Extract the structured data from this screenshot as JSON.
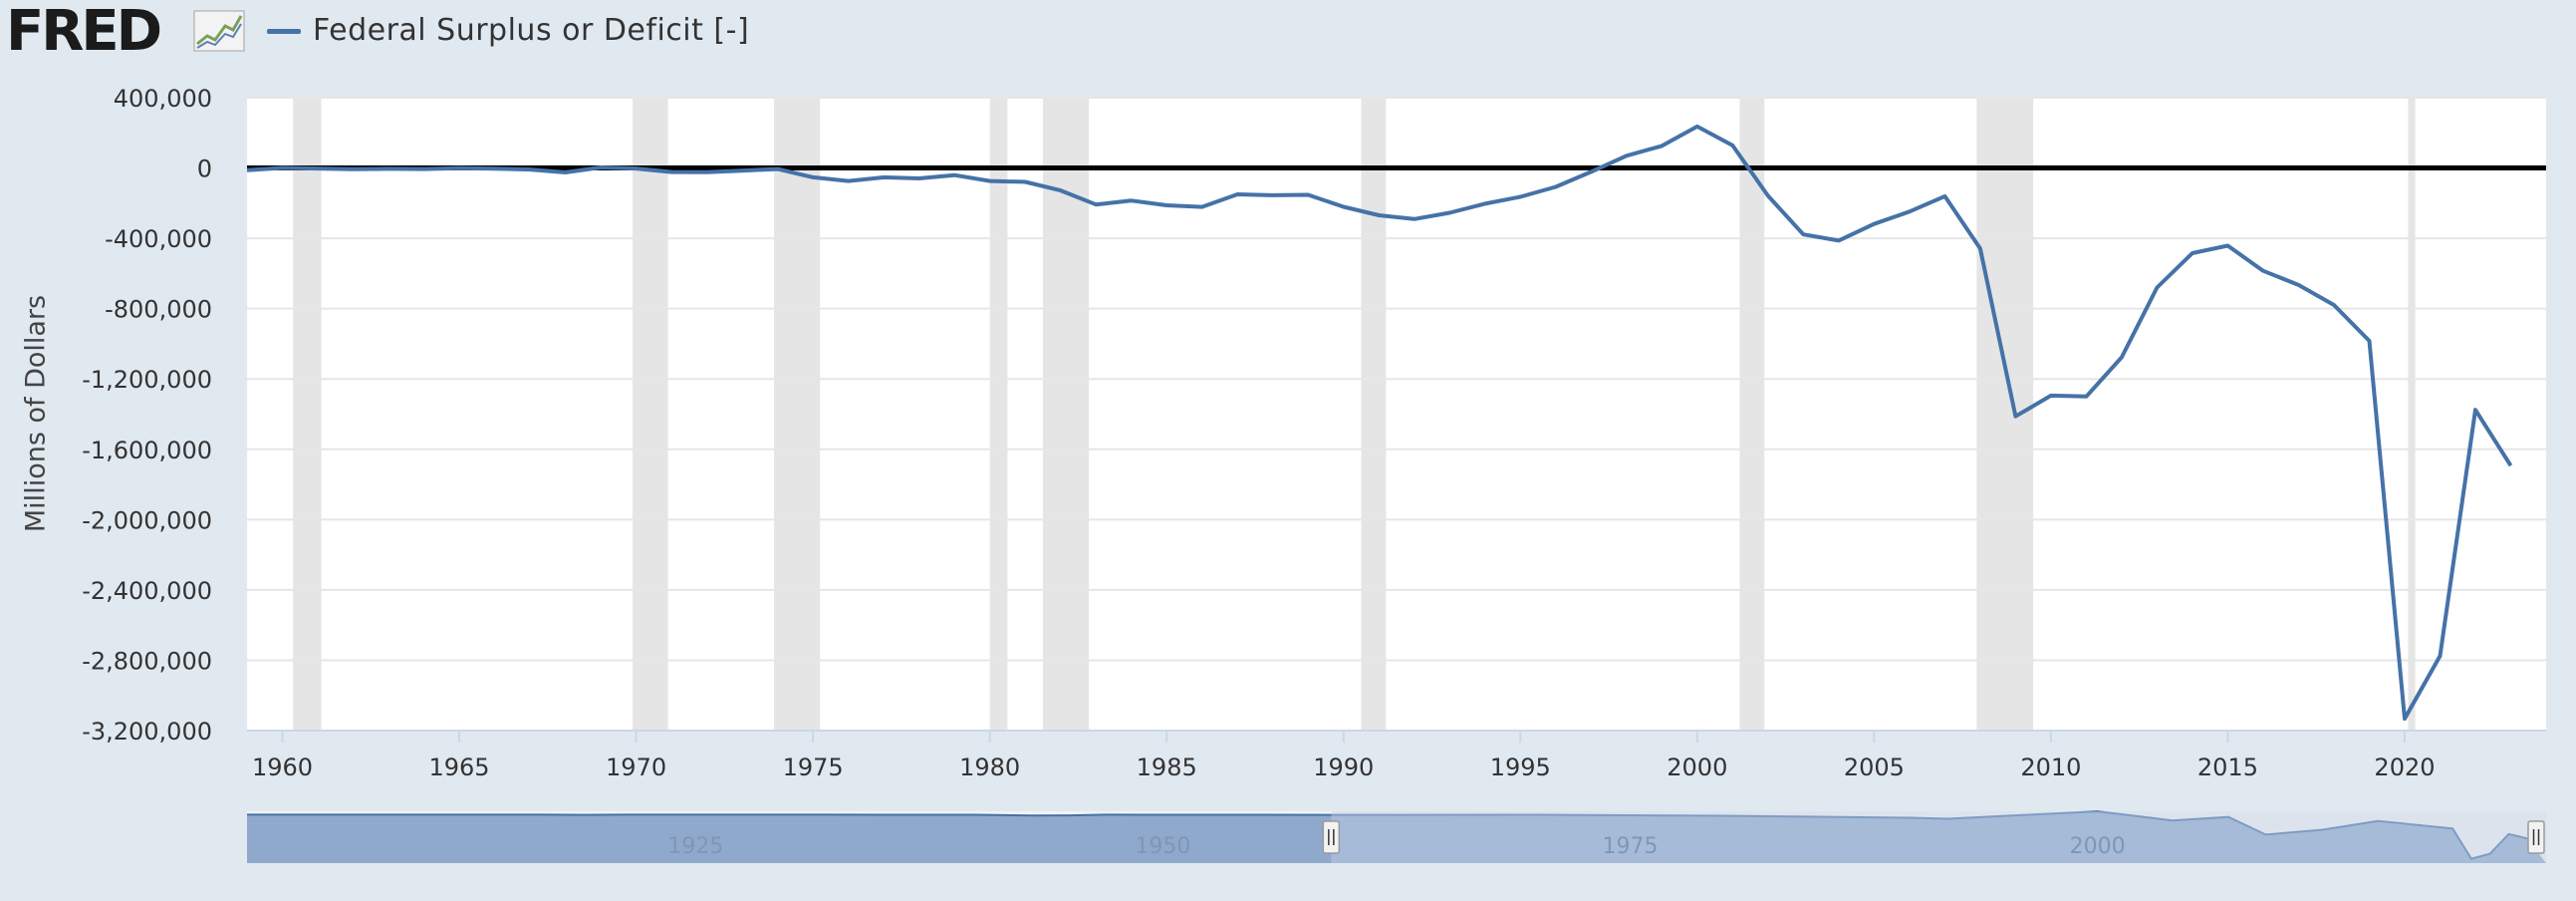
{
  "header": {
    "logo_text": "FRED",
    "logo_icon": "chart-line-icon"
  },
  "colors": {
    "background": "#e1e9f0",
    "plot_background": "#ffffff",
    "series": "#4572a7",
    "recession_band": "#e5e5e5",
    "grid": "#e6e6e6",
    "zero_line": "#000000",
    "navigator_fill": "#8fa9cc",
    "navigator_selected": "#c4d0e7"
  },
  "chart_data": {
    "type": "line",
    "title": "",
    "xlabel": "",
    "ylabel": "Millions of Dollars",
    "legend": {
      "position": "top-left"
    },
    "grid": true,
    "xlim": [
      1959,
      2024
    ],
    "ylim": [
      -3200000,
      400000
    ],
    "yticks": [
      {
        "value": 400000,
        "label": "400,000"
      },
      {
        "value": 0,
        "label": "0"
      },
      {
        "value": -400000,
        "label": "-400,000"
      },
      {
        "value": -800000,
        "label": "-800,000"
      },
      {
        "value": -1200000,
        "label": "-1,200,000"
      },
      {
        "value": -1600000,
        "label": "-1,600,000"
      },
      {
        "value": -2000000,
        "label": "-2,000,000"
      },
      {
        "value": -2400000,
        "label": "-2,400,000"
      },
      {
        "value": -2800000,
        "label": "-2,800,000"
      },
      {
        "value": -3200000,
        "label": "-3,200,000"
      }
    ],
    "xticks": [
      {
        "value": 1960,
        "label": "1960"
      },
      {
        "value": 1965,
        "label": "1965"
      },
      {
        "value": 1970,
        "label": "1970"
      },
      {
        "value": 1975,
        "label": "1975"
      },
      {
        "value": 1980,
        "label": "1980"
      },
      {
        "value": 1985,
        "label": "1985"
      },
      {
        "value": 1990,
        "label": "1990"
      },
      {
        "value": 1995,
        "label": "1995"
      },
      {
        "value": 2000,
        "label": "2000"
      },
      {
        "value": 2005,
        "label": "2005"
      },
      {
        "value": 2010,
        "label": "2010"
      },
      {
        "value": 2015,
        "label": "2015"
      },
      {
        "value": 2020,
        "label": "2020"
      }
    ],
    "recessions": [
      [
        1960.3,
        1961.1
      ],
      [
        1969.9,
        1970.9
      ],
      [
        1973.9,
        1975.2
      ],
      [
        1980.0,
        1980.5
      ],
      [
        1981.5,
        1982.8
      ],
      [
        1990.5,
        1991.2
      ],
      [
        2001.2,
        2001.9
      ],
      [
        2007.9,
        2009.5
      ],
      [
        2020.1,
        2020.3
      ]
    ],
    "series": [
      {
        "name": "Federal Surplus or Deficit [-]",
        "points": [
          [
            1959,
            -12849
          ],
          [
            1960,
            301
          ],
          [
            1961,
            -3335
          ],
          [
            1962,
            -7146
          ],
          [
            1963,
            -4756
          ],
          [
            1964,
            -5915
          ],
          [
            1965,
            -1411
          ],
          [
            1966,
            -3698
          ],
          [
            1967,
            -8643
          ],
          [
            1968,
            -25161
          ],
          [
            1969,
            3242
          ],
          [
            1970,
            -2842
          ],
          [
            1971,
            -23033
          ],
          [
            1972,
            -23373
          ],
          [
            1973,
            -14908
          ],
          [
            1974,
            -6135
          ],
          [
            1975,
            -53242
          ],
          [
            1976,
            -73732
          ],
          [
            1977,
            -53659
          ],
          [
            1978,
            -59185
          ],
          [
            1979,
            -40726
          ],
          [
            1980,
            -73830
          ],
          [
            1981,
            -78968
          ],
          [
            1982,
            -127977
          ],
          [
            1983,
            -207802
          ],
          [
            1984,
            -185367
          ],
          [
            1985,
            -212308
          ],
          [
            1986,
            -221227
          ],
          [
            1987,
            -149730
          ],
          [
            1988,
            -155178
          ],
          [
            1989,
            -152639
          ],
          [
            1990,
            -221036
          ],
          [
            1991,
            -269238
          ],
          [
            1992,
            -290321
          ],
          [
            1993,
            -255051
          ],
          [
            1994,
            -203186
          ],
          [
            1995,
            -163952
          ],
          [
            1996,
            -107431
          ],
          [
            1997,
            -21884
          ],
          [
            1998,
            69270
          ],
          [
            1999,
            125610
          ],
          [
            2000,
            236241
          ],
          [
            2001,
            128236
          ],
          [
            2002,
            -157758
          ],
          [
            2003,
            -377585
          ],
          [
            2004,
            -412727
          ],
          [
            2005,
            -318346
          ],
          [
            2006,
            -248181
          ],
          [
            2007,
            -160701
          ],
          [
            2008,
            -458553
          ],
          [
            2009,
            -1412688
          ],
          [
            2010,
            -1294373
          ],
          [
            2011,
            -1299599
          ],
          [
            2012,
            -1076573
          ],
          [
            2013,
            -679775
          ],
          [
            2014,
            -484602
          ],
          [
            2015,
            -441960
          ],
          [
            2016,
            -584651
          ],
          [
            2017,
            -665446
          ],
          [
            2018,
            -779137
          ],
          [
            2019,
            -983587
          ],
          [
            2020,
            -3132460
          ],
          [
            2021,
            -2775306
          ],
          [
            2022,
            -1375897
          ],
          [
            2023,
            -1693000
          ]
        ]
      }
    ]
  },
  "navigator": {
    "labels": [
      {
        "value": 1925,
        "label": "1925"
      },
      {
        "value": 1950,
        "label": "1950"
      },
      {
        "value": 1975,
        "label": "1975"
      },
      {
        "value": 2000,
        "label": "2000"
      }
    ],
    "range": [
      1901,
      2024
    ],
    "selected_range": [
      1959,
      2024
    ],
    "series_points": [
      [
        1901,
        0
      ],
      [
        1917,
        0
      ],
      [
        1919,
        -13000
      ],
      [
        1921,
        700
      ],
      [
        1930,
        700
      ],
      [
        1932,
        -2700
      ],
      [
        1940,
        -2900
      ],
      [
        1943,
        -54500
      ],
      [
        1945,
        -47600
      ],
      [
        1947,
        4000
      ],
      [
        1950,
        -3100
      ],
      [
        1959,
        -12849
      ],
      [
        1970,
        -2842
      ],
      [
        1980,
        -73830
      ],
      [
        1990,
        -221036
      ],
      [
        1992,
        -290321
      ],
      [
        2000,
        236241
      ],
      [
        2004,
        -412727
      ],
      [
        2007,
        -160701
      ],
      [
        2009,
        -1412688
      ],
      [
        2012,
        -1076573
      ],
      [
        2015,
        -441960
      ],
      [
        2019,
        -983587
      ],
      [
        2020,
        -3132460
      ],
      [
        2021,
        -2775306
      ],
      [
        2022,
        -1375897
      ],
      [
        2023,
        -1693000
      ]
    ]
  }
}
